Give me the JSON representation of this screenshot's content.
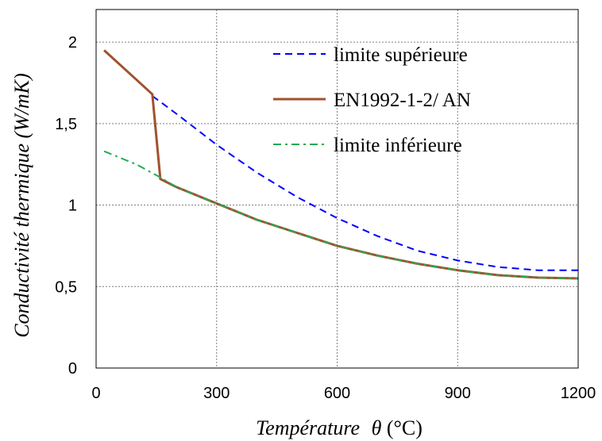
{
  "chart_data": {
    "type": "line",
    "title": "",
    "xlabel": "Température θ (°C)",
    "xlabel_main": "Température",
    "xlabel_symbol": "θ",
    "xlabel_unit": "(°C)",
    "ylabel": "Conductivité thermique (W/mK)",
    "xlim": [
      0,
      1200
    ],
    "ylim": [
      0,
      2.2
    ],
    "x_ticks": [
      0,
      300,
      600,
      900,
      1200
    ],
    "x_tick_labels": [
      "0",
      "300",
      "600",
      "900",
      "1200"
    ],
    "y_ticks": [
      0,
      0.5,
      1,
      1.5,
      2
    ],
    "y_tick_labels": [
      "0",
      "0,5",
      "1",
      "1,5",
      "2"
    ],
    "grid": true,
    "legend_position": "top-right",
    "series": [
      {
        "name": "limite supérieure",
        "style": "dashed",
        "color": "#0000ff",
        "points": [
          [
            140,
            1.67
          ],
          [
            200,
            1.56
          ],
          [
            300,
            1.37
          ],
          [
            400,
            1.2
          ],
          [
            500,
            1.05
          ],
          [
            600,
            0.92
          ],
          [
            700,
            0.81
          ],
          [
            800,
            0.72
          ],
          [
            900,
            0.66
          ],
          [
            1000,
            0.62
          ],
          [
            1100,
            0.6
          ],
          [
            1200,
            0.6
          ]
        ]
      },
      {
        "name": "EN1992-1-2/ AN",
        "style": "solid",
        "color": "#a0522d",
        "points": [
          [
            20,
            1.95
          ],
          [
            100,
            1.77
          ],
          [
            140,
            1.68
          ],
          [
            160,
            1.16
          ],
          [
            200,
            1.11
          ],
          [
            300,
            1.01
          ],
          [
            400,
            0.91
          ],
          [
            500,
            0.83
          ],
          [
            600,
            0.75
          ],
          [
            700,
            0.69
          ],
          [
            800,
            0.64
          ],
          [
            900,
            0.6
          ],
          [
            1000,
            0.57
          ],
          [
            1100,
            0.555
          ],
          [
            1200,
            0.55
          ]
        ]
      },
      {
        "name": "limite inférieure",
        "style": "dashdot",
        "color": "#22aa55",
        "points": [
          [
            20,
            1.33
          ],
          [
            100,
            1.25
          ],
          [
            160,
            1.17
          ],
          [
            200,
            1.11
          ],
          [
            300,
            1.01
          ],
          [
            400,
            0.91
          ],
          [
            500,
            0.83
          ],
          [
            600,
            0.75
          ],
          [
            700,
            0.69
          ],
          [
            800,
            0.64
          ],
          [
            900,
            0.6
          ],
          [
            1000,
            0.57
          ],
          [
            1100,
            0.555
          ],
          [
            1200,
            0.55
          ]
        ]
      }
    ]
  }
}
